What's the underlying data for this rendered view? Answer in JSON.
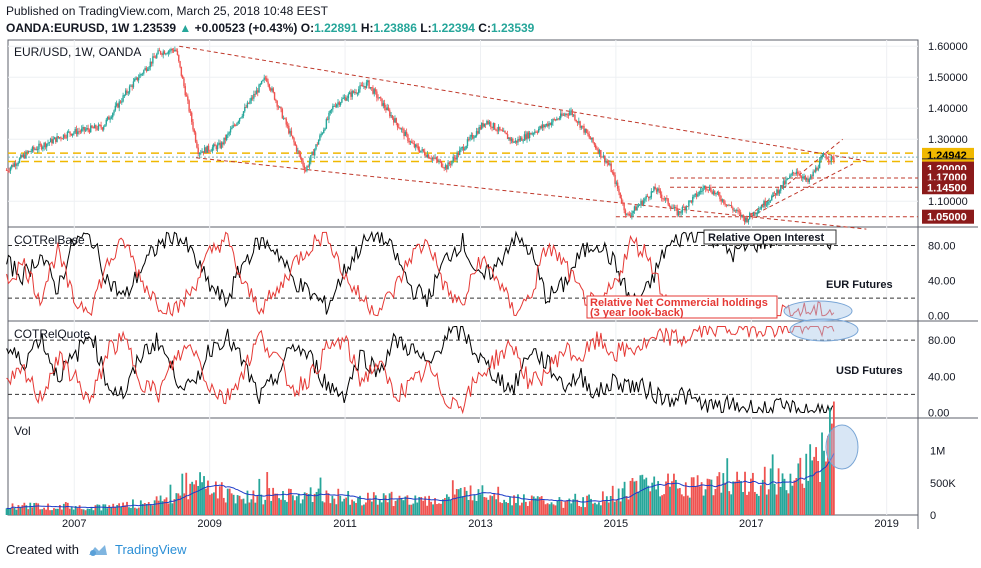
{
  "header": {
    "published": "Published on TradingView.com, March 25, 2018 10:48 EEST",
    "symbol": "OANDA:EURUSD, 1W",
    "last": "1.23539",
    "change": "+0.00523 (+0.43%)",
    "open_label": "O:",
    "open": "1.22891",
    "high_label": "H:",
    "high": "1.23886",
    "low_label": "L:",
    "low": "1.22394",
    "close_label": "C:",
    "close": "1.23539"
  },
  "footer": {
    "created_with": "Created with",
    "brand": "TradingView"
  },
  "colors": {
    "up": "#26a69a",
    "down": "#ef5350",
    "cot_black": "#000000",
    "cot_red": "#e53935",
    "vol_ma": "#1e3cc8",
    "level_box": "#8b1a1a",
    "yellow_band": "#f0b800",
    "trend": "#c0392b",
    "highlight": "#a9c8e8"
  },
  "chart_data": [
    {
      "type": "candlestick",
      "title": "EUR/USD, 1W, OANDA",
      "x_ticks": [
        "2007",
        "2009",
        "2011",
        "2013",
        "2015",
        "2017",
        "2019"
      ],
      "y_ticks": [
        "1.60000",
        "1.50000",
        "1.40000",
        "1.30000",
        "1.10000"
      ],
      "ylim": [
        1.02,
        1.62
      ],
      "price_path": [
        [
          "2006-01",
          1.2
        ],
        [
          "2006-05",
          1.26
        ],
        [
          "2006-12",
          1.32
        ],
        [
          "2007-06",
          1.34
        ],
        [
          "2007-11",
          1.47
        ],
        [
          "2008-04",
          1.58
        ],
        [
          "2008-07",
          1.59
        ],
        [
          "2008-11",
          1.26
        ],
        [
          "2009-03",
          1.28
        ],
        [
          "2009-11",
          1.5
        ],
        [
          "2010-06",
          1.2
        ],
        [
          "2010-11",
          1.41
        ],
        [
          "2011-05",
          1.48
        ],
        [
          "2012-01",
          1.28
        ],
        [
          "2012-07",
          1.21
        ],
        [
          "2013-02",
          1.36
        ],
        [
          "2013-07",
          1.29
        ],
        [
          "2014-05",
          1.39
        ],
        [
          "2014-12",
          1.21
        ],
        [
          "2015-03",
          1.05
        ],
        [
          "2015-08",
          1.14
        ],
        [
          "2015-12",
          1.06
        ],
        [
          "2016-05",
          1.15
        ],
        [
          "2016-12",
          1.04
        ],
        [
          "2017-05",
          1.12
        ],
        [
          "2017-09",
          1.2
        ],
        [
          "2017-11",
          1.16
        ],
        [
          "2018-02",
          1.25
        ],
        [
          "2018-03",
          1.235
        ]
      ],
      "level_labels": [
        {
          "value": 1.24942,
          "text": "1.24942",
          "color": "#f0b800",
          "text_color": "#000000"
        },
        {
          "value": 1.2,
          "text": "1.20000",
          "color": "#8b1a1a",
          "text_color": "#ffffff"
        },
        {
          "value": 1.17,
          "text": "1.17000",
          "color": "#8b1a1a",
          "text_color": "#ffffff"
        },
        {
          "value": 1.145,
          "text": "1.14500",
          "color": "#8b1a1a",
          "text_color": "#ffffff"
        },
        {
          "value": 1.05,
          "text": "1.05000",
          "color": "#8b1a1a",
          "text_color": "#ffffff"
        }
      ],
      "price_label_current": "1.23539"
    },
    {
      "type": "line",
      "title": "COTRelBase",
      "y_ticks": [
        "80.00",
        "40.00",
        "0.00"
      ],
      "ylim": [
        -5,
        100
      ],
      "thresholds": [
        80,
        20
      ],
      "annotations": [
        "Relative Open Interest",
        "EUR Futures",
        "Relative Net Commercial holdings",
        "(3 year look-back)"
      ],
      "series": [
        {
          "color": "#000000",
          "values": [
            60,
            45,
            70,
            30,
            85,
            90,
            40,
            20,
            55,
            80,
            95,
            70,
            35,
            15,
            60,
            85,
            75,
            40,
            25,
            10,
            50,
            80,
            95,
            70,
            30,
            20,
            65,
            85,
            40,
            55,
            90,
            75,
            20,
            35,
            70,
            85,
            60,
            15,
            30,
            75,
            90,
            95,
            88,
            70,
            80,
            85,
            90,
            92,
            88,
            85
          ]
        },
        {
          "color": "#e53935",
          "values": [
            40,
            60,
            20,
            75,
            15,
            10,
            60,
            85,
            40,
            15,
            5,
            30,
            70,
            90,
            35,
            10,
            25,
            60,
            80,
            95,
            45,
            20,
            5,
            30,
            70,
            85,
            30,
            10,
            65,
            45,
            5,
            20,
            80,
            60,
            25,
            10,
            35,
            85,
            70,
            20,
            5,
            5,
            5,
            5,
            5,
            5,
            5,
            5,
            5,
            5
          ]
        }
      ]
    },
    {
      "type": "line",
      "title": "COTRelQuote",
      "y_ticks": [
        "80.00",
        "40.00",
        "0.00"
      ],
      "ylim": [
        -5,
        100
      ],
      "thresholds": [
        80,
        20
      ],
      "annotations": [
        "USD Futures"
      ],
      "series": [
        {
          "color": "#000000",
          "values": [
            70,
            55,
            85,
            40,
            60,
            90,
            30,
            20,
            65,
            80,
            40,
            25,
            70,
            85,
            55,
            15,
            40,
            75,
            60,
            30,
            20,
            65,
            45,
            80,
            70,
            50,
            85,
            90,
            60,
            40,
            25,
            70,
            55,
            30,
            40,
            20,
            35,
            30,
            25,
            15,
            20,
            10,
            5,
            8,
            5,
            3,
            5,
            2,
            3,
            2
          ]
        },
        {
          "color": "#e53935",
          "values": [
            30,
            45,
            15,
            60,
            40,
            10,
            70,
            80,
            35,
            20,
            60,
            75,
            30,
            15,
            45,
            85,
            60,
            25,
            40,
            70,
            80,
            35,
            55,
            20,
            30,
            50,
            15,
            10,
            40,
            60,
            75,
            30,
            45,
            70,
            60,
            80,
            65,
            70,
            75,
            85,
            80,
            90,
            95,
            92,
            94,
            95,
            93,
            95,
            94,
            95
          ]
        }
      ]
    },
    {
      "type": "bar",
      "title": "Vol",
      "y_ticks": [
        "1M",
        "500K",
        "0"
      ],
      "ylim": [
        0,
        1400000
      ],
      "volume_path": [
        [
          "2006-01",
          150000
        ],
        [
          "2007-06",
          120000
        ],
        [
          "2008-07",
          250000
        ],
        [
          "2008-11",
          520000
        ],
        [
          "2009-06",
          280000
        ],
        [
          "2010-06",
          320000
        ],
        [
          "2011-06",
          260000
        ],
        [
          "2012-06",
          230000
        ],
        [
          "2013-01",
          400000
        ],
        [
          "2013-06",
          250000
        ],
        [
          "2014-06",
          180000
        ],
        [
          "2014-12",
          300000
        ],
        [
          "2015-06",
          500000
        ],
        [
          "2016-06",
          450000
        ],
        [
          "2017-06",
          550000
        ],
        [
          "2017-12",
          700000
        ],
        [
          "2018-03",
          1200000
        ]
      ]
    }
  ]
}
